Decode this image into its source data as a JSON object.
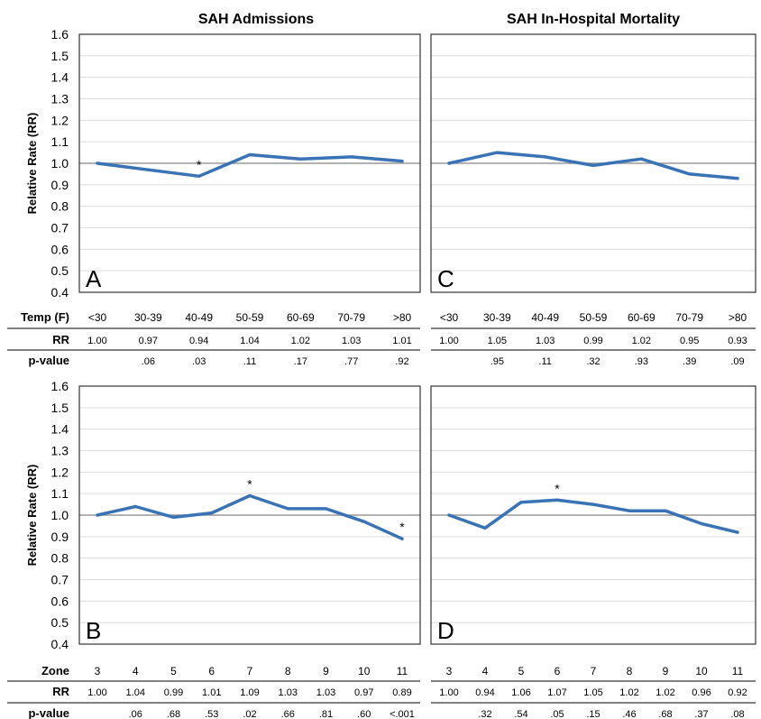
{
  "colors": {
    "line": "#3a73b5",
    "reference": "#999999",
    "grid": "#dcdcdc",
    "frame": "#333333"
  },
  "titles": {
    "left": "SAH Admissions",
    "right": "SAH In-Hospital Mortality"
  },
  "y_axis": {
    "label": "Relative Rate (RR)",
    "ticks": [
      "1.6",
      "1.5",
      "1.4",
      "1.3",
      "1.2",
      "1.1",
      "1.0",
      "0.9",
      "0.8",
      "0.7",
      "0.6",
      "0.5",
      "0.4"
    ]
  },
  "tables": {
    "top": {
      "category_header": "Temp (F)",
      "rr_header": "RR",
      "p_header": "p-value"
    },
    "bottom": {
      "category_header": "Zone",
      "rr_header": "RR",
      "p_header": "p-value"
    }
  },
  "chart_data": [
    {
      "id": "A",
      "type": "line",
      "title": "SAH Admissions",
      "letter": "A",
      "ylabel": "Relative Rate (RR)",
      "ylim": [
        0.4,
        1.6
      ],
      "reference_line": 1.0,
      "grid": true,
      "categories": [
        "<30",
        "30-39",
        "40-49",
        "50-59",
        "60-69",
        "70-79",
        ">80"
      ],
      "values": [
        1.0,
        0.97,
        0.94,
        1.04,
        1.02,
        1.03,
        1.01
      ],
      "rr_labels": [
        "1.00",
        "0.97",
        "0.94",
        "1.04",
        "1.02",
        "1.03",
        "1.01"
      ],
      "p_values": [
        "",
        ".06",
        ".03",
        ".11",
        ".17",
        ".77",
        ".92"
      ],
      "significant": [
        2
      ]
    },
    {
      "id": "C",
      "type": "line",
      "title": "SAH In-Hospital Mortality",
      "letter": "C",
      "ylabel": "",
      "ylim": [
        0.4,
        1.6
      ],
      "reference_line": 1.0,
      "grid": true,
      "categories": [
        "<30",
        "30-39",
        "40-49",
        "50-59",
        "60-69",
        "70-79",
        ">80"
      ],
      "values": [
        1.0,
        1.05,
        1.03,
        0.99,
        1.02,
        0.95,
        0.93
      ],
      "rr_labels": [
        "1.00",
        "1.05",
        "1.03",
        "0.99",
        "1.02",
        "0.95",
        "0.93"
      ],
      "p_values": [
        "",
        ".95",
        ".11",
        ".32",
        ".93",
        ".39",
        ".09"
      ],
      "significant": []
    },
    {
      "id": "B",
      "type": "line",
      "title": "",
      "letter": "B",
      "ylabel": "Relative Rate (RR)",
      "ylim": [
        0.4,
        1.6
      ],
      "reference_line": 1.0,
      "grid": true,
      "categories": [
        "3",
        "4",
        "5",
        "6",
        "7",
        "8",
        "9",
        "10",
        "11"
      ],
      "values": [
        1.0,
        1.04,
        0.99,
        1.01,
        1.09,
        1.03,
        1.03,
        0.97,
        0.89
      ],
      "rr_labels": [
        "1.00",
        "1.04",
        "0.99",
        "1.01",
        "1.09",
        "1.03",
        "1.03",
        "0.97",
        "0.89"
      ],
      "p_values": [
        "",
        ".06",
        ".68",
        ".53",
        ".02",
        ".66",
        ".81",
        ".60",
        "<.001"
      ],
      "significant": [
        4,
        8
      ]
    },
    {
      "id": "D",
      "type": "line",
      "title": "",
      "letter": "D",
      "ylabel": "",
      "ylim": [
        0.4,
        1.6
      ],
      "reference_line": 1.0,
      "grid": true,
      "categories": [
        "3",
        "4",
        "5",
        "6",
        "7",
        "8",
        "9",
        "10",
        "11"
      ],
      "values": [
        1.0,
        0.94,
        1.06,
        1.07,
        1.05,
        1.02,
        1.02,
        0.96,
        0.92
      ],
      "rr_labels": [
        "1.00",
        "0.94",
        "1.06",
        "1.07",
        "1.05",
        "1.02",
        "1.02",
        "0.96",
        "0.92"
      ],
      "p_values": [
        "",
        ".32",
        ".54",
        ".05",
        ".15",
        ".46",
        ".68",
        ".37",
        ".08"
      ],
      "significant": [
        3
      ]
    }
  ]
}
